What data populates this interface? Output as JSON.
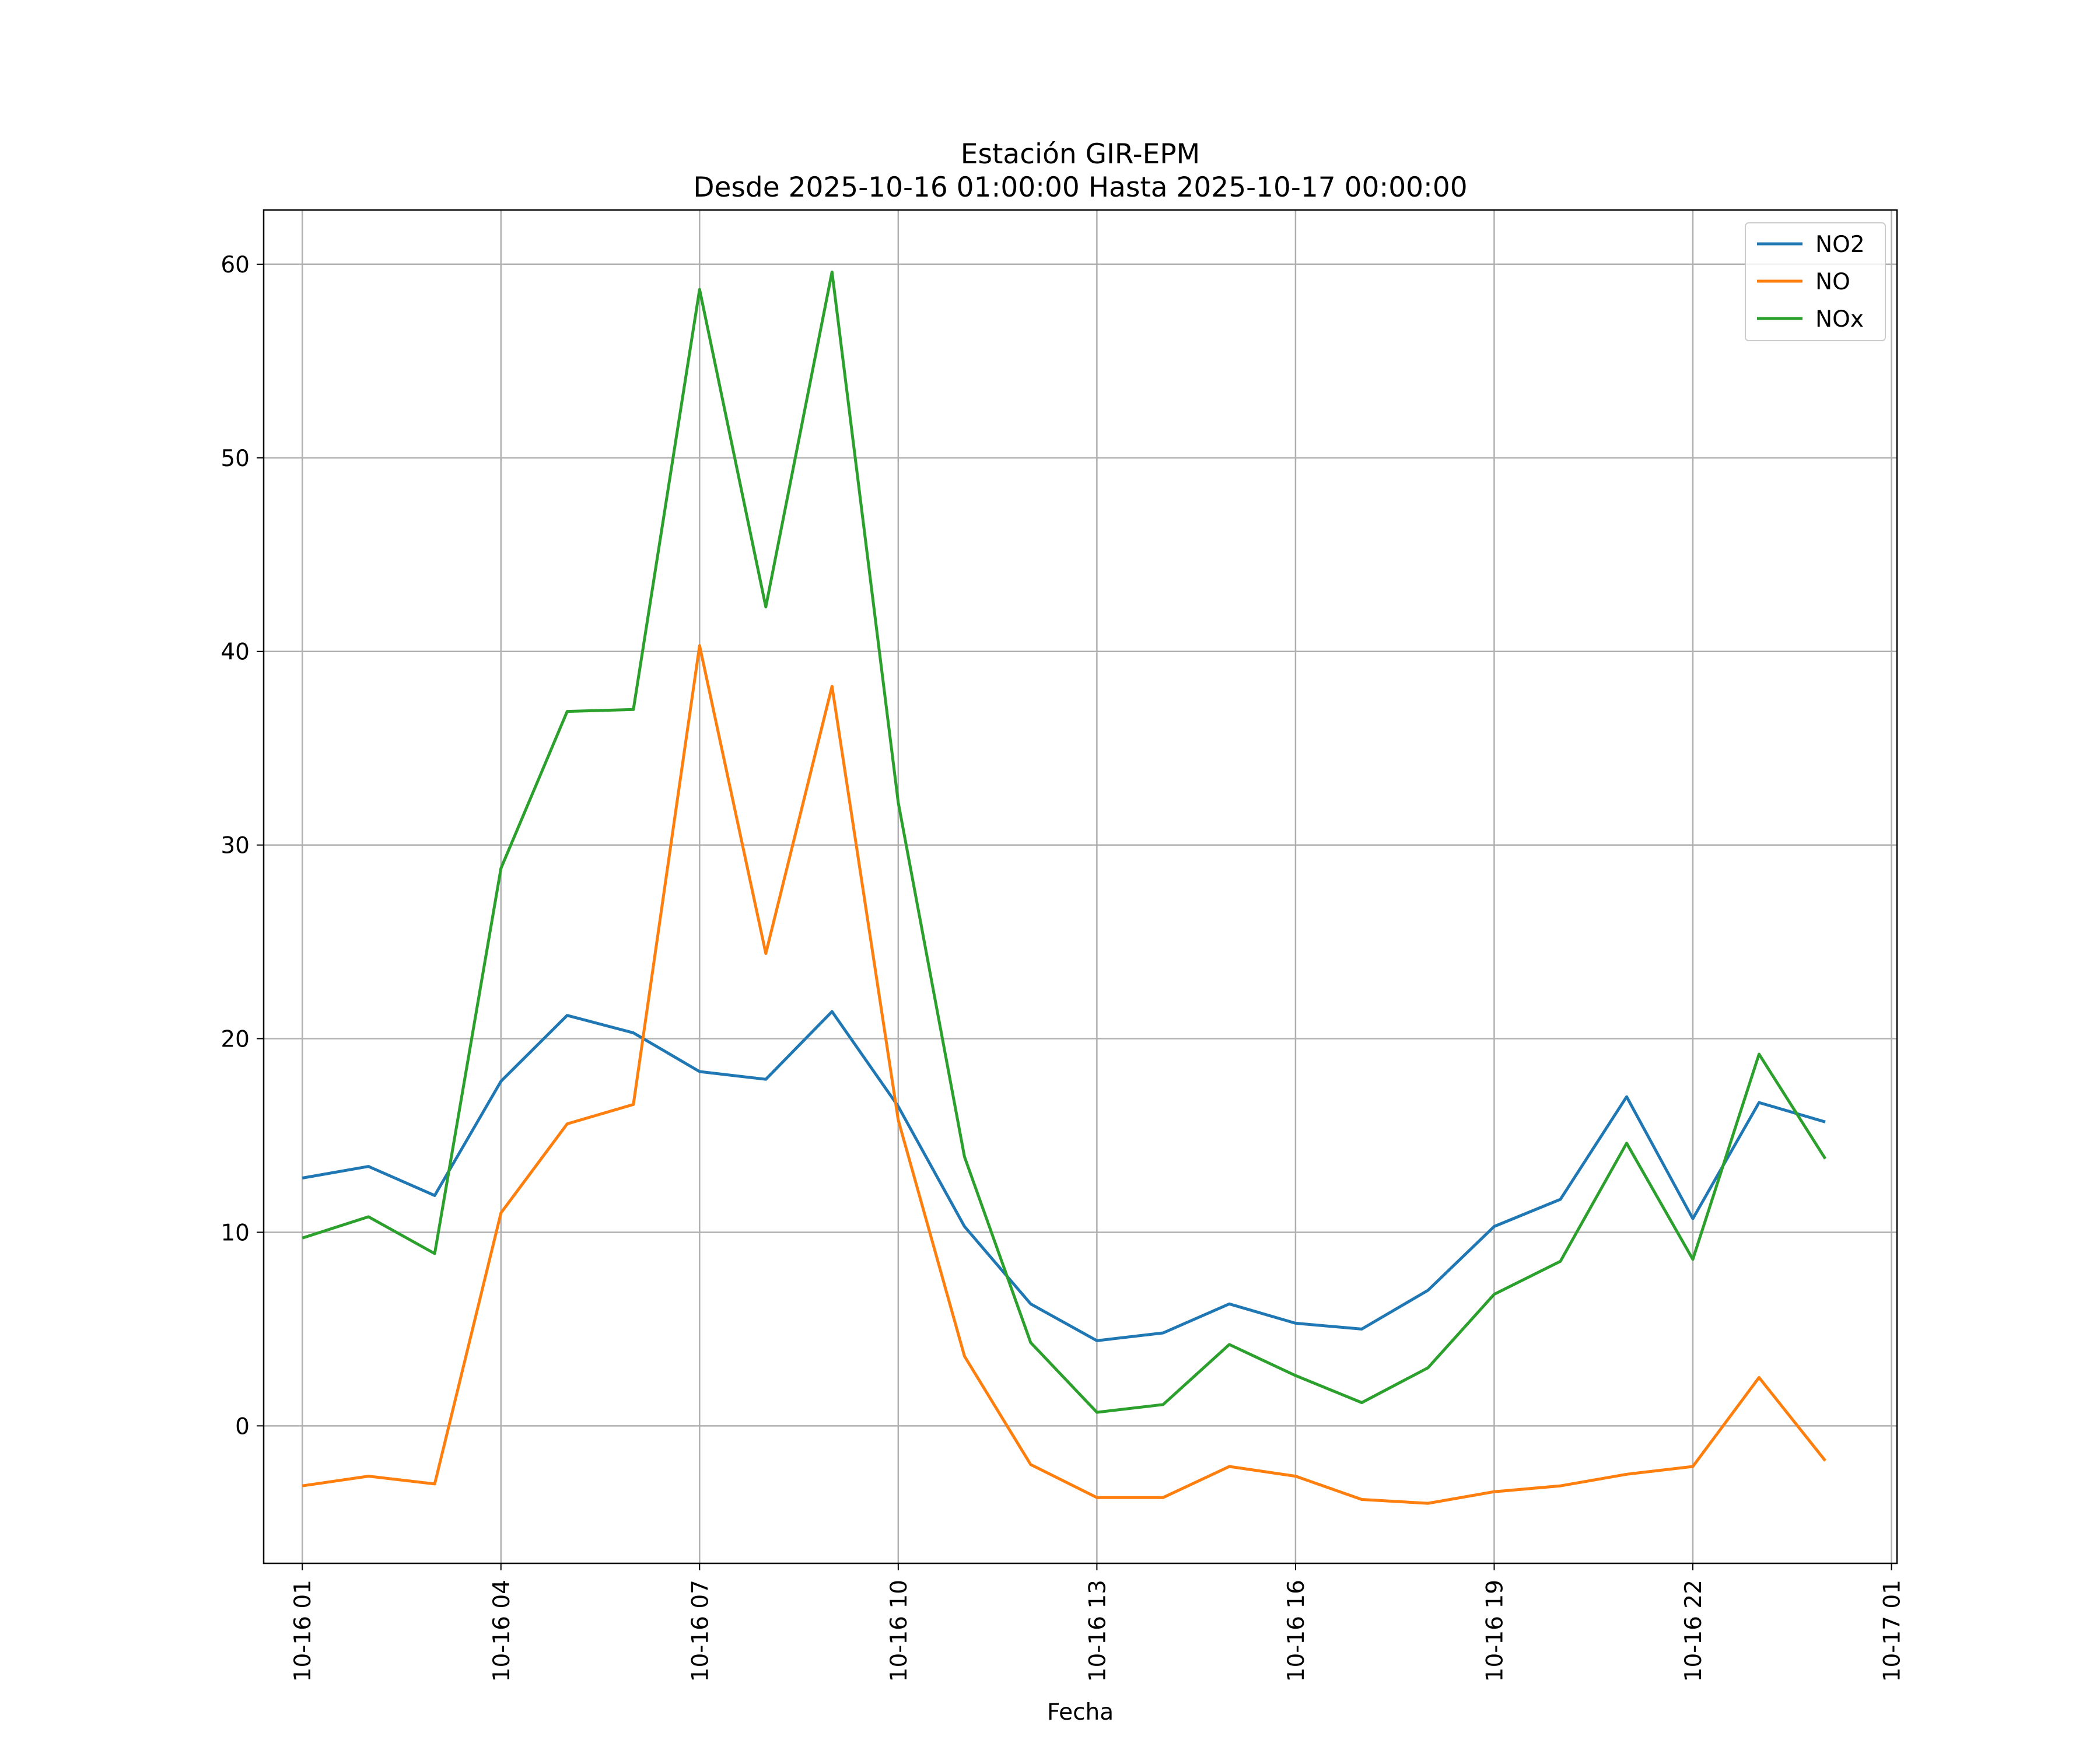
{
  "chart_data": {
    "type": "line",
    "title": "Estación GIR-EPM",
    "subtitle": "Desde 2025-10-16 01:00:00 Hasta 2025-10-17 00:00:00",
    "xlabel": "Fecha",
    "ylabel": "",
    "x": [
      "2025-10-16 01:00",
      "2025-10-16 02:00",
      "2025-10-16 03:00",
      "2025-10-16 04:00",
      "2025-10-16 05:00",
      "2025-10-16 06:00",
      "2025-10-16 07:00",
      "2025-10-16 08:00",
      "2025-10-16 09:00",
      "2025-10-16 10:00",
      "2025-10-16 11:00",
      "2025-10-16 12:00",
      "2025-10-16 13:00",
      "2025-10-16 14:00",
      "2025-10-16 15:00",
      "2025-10-16 16:00",
      "2025-10-16 17:00",
      "2025-10-16 18:00",
      "2025-10-16 19:00",
      "2025-10-16 20:00",
      "2025-10-16 21:00",
      "2025-10-16 22:00",
      "2025-10-16 23:00",
      "2025-10-17 00:00"
    ],
    "series": [
      {
        "name": "NO2",
        "color": "#1f77b4",
        "values": [
          12.8,
          13.4,
          11.9,
          17.8,
          21.2,
          20.3,
          18.3,
          17.9,
          21.4,
          16.5,
          10.3,
          6.3,
          4.4,
          4.8,
          6.3,
          5.3,
          5.0,
          7.0,
          10.3,
          11.7,
          17.0,
          10.7,
          16.7,
          15.7
        ]
      },
      {
        "name": "NO",
        "color": "#ff7f0e",
        "values": [
          -3.1,
          -2.6,
          -3.0,
          11.0,
          15.6,
          16.6,
          40.3,
          24.4,
          38.2,
          15.8,
          3.6,
          -2.0,
          -3.7,
          -3.7,
          -2.1,
          -2.6,
          -3.8,
          -4.0,
          -3.4,
          -3.1,
          -2.5,
          -2.1,
          2.5,
          -1.8
        ]
      },
      {
        "name": "NOx",
        "color": "#2ca02c",
        "values": [
          9.7,
          10.8,
          8.9,
          28.8,
          36.9,
          37.0,
          58.7,
          42.3,
          59.6,
          32.2,
          13.9,
          4.3,
          0.7,
          1.1,
          4.2,
          2.6,
          1.2,
          3.0,
          6.8,
          8.5,
          14.6,
          8.6,
          19.2,
          13.8
        ]
      }
    ],
    "xticks": [
      "10-16 01",
      "10-16 04",
      "10-16 07",
      "10-16 10",
      "10-16 13",
      "10-16 16",
      "10-16 19",
      "10-16 22",
      "10-17 01"
    ],
    "yticks": [
      "0",
      "10",
      "20",
      "30",
      "40",
      "50",
      "60"
    ],
    "ylim": [
      -7.1,
      62.8
    ],
    "xlim": [
      "2025-10-16 00:25",
      "2025-10-17 01:05"
    ],
    "grid": true,
    "legend_position": "top-right"
  }
}
